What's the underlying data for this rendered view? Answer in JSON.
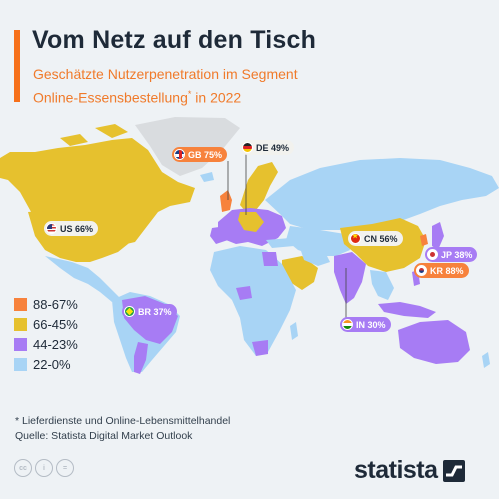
{
  "title": "Vom Netz auf den Tisch",
  "subtitle_line1": "Geschätzte Nutzerpenetration im Segment",
  "subtitle_line2_main": "Online-Essensbestellung",
  "subtitle_line2_sup": "*",
  "subtitle_line2_tail": " in 2022",
  "colors": {
    "accent": "#f6701a",
    "range_88_67": "#f7823c",
    "range_66_45": "#e6c12e",
    "range_44_23": "#a77cf4",
    "range_22_0": "#a8d4f5",
    "no_data": "#d9dcdf"
  },
  "labels": [
    {
      "code": "GB",
      "value": "75%",
      "text": "GB 75%",
      "flag": "uk-flag-icon"
    },
    {
      "code": "DE",
      "value": "49%",
      "text": "DE 49%",
      "flag": "germany-flag-icon"
    },
    {
      "code": "US",
      "value": "66%",
      "text": "US 66%",
      "flag": "usa-flag-icon"
    },
    {
      "code": "CN",
      "value": "56%",
      "text": "CN 56%",
      "flag": "china-flag-icon"
    },
    {
      "code": "JP",
      "value": "38%",
      "text": "JP 38%",
      "flag": "japan-flag-icon"
    },
    {
      "code": "KR",
      "value": "88%",
      "text": "KR 88%",
      "flag": "korea-flag-icon"
    },
    {
      "code": "BR",
      "value": "37%",
      "text": "BR 37%",
      "flag": "brazil-flag-icon"
    },
    {
      "code": "IN",
      "value": "30%",
      "text": "IN 30%",
      "flag": "india-flag-icon"
    }
  ],
  "legend": [
    {
      "label": "88-67%",
      "color": "#f7823c"
    },
    {
      "label": "66-45%",
      "color": "#e6c12e"
    },
    {
      "label": "44-23%",
      "color": "#a77cf4"
    },
    {
      "label": "22-0%",
      "color": "#a8d4f5"
    }
  ],
  "footnote": "* Lieferdienste und Online-Lebensmittelhandel",
  "source": "Quelle: Statista Digital Market Outlook",
  "brand": "statista"
}
